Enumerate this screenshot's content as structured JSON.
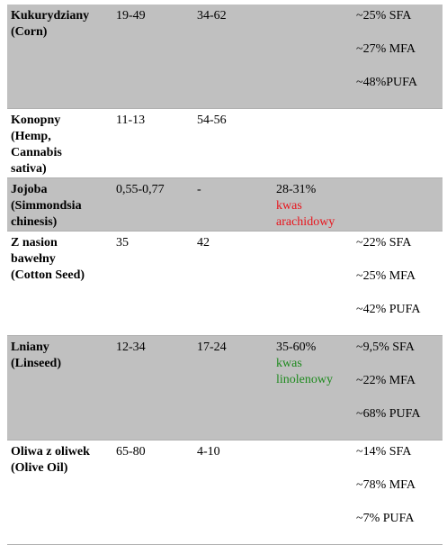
{
  "table": {
    "rows": [
      {
        "shaded": true,
        "cells": [
          {
            "lines": [
              "Kukurydziany",
              "(Corn)"
            ]
          },
          {
            "lines": [
              "19-49"
            ]
          },
          {
            "lines": [
              "34-62"
            ]
          },
          {
            "lines": []
          },
          {
            "lines": [
              "~25% SFA",
              "~27% MFA",
              "~48%PUFA"
            ]
          }
        ]
      },
      {
        "shaded": false,
        "cells": [
          {
            "lines": [
              "Konopny",
              "(Hemp,",
              "Cannabis",
              "sativa)"
            ]
          },
          {
            "lines": [
              "11-13"
            ]
          },
          {
            "lines": [
              "54-56"
            ]
          },
          {
            "lines": []
          },
          {
            "lines": []
          }
        ]
      },
      {
        "shaded": true,
        "cells": [
          {
            "lines": [
              "Jojoba",
              "(Simmondsia",
              "chinesis)"
            ]
          },
          {
            "lines": [
              "0,55-0,77"
            ]
          },
          {
            "lines": [
              "-"
            ]
          },
          {
            "lines": [
              "28-31%"
            ],
            "note": [
              "kwas",
              "arachidowy"
            ],
            "note_color": "#e8141c"
          },
          {
            "lines": []
          }
        ]
      },
      {
        "shaded": false,
        "cells": [
          {
            "lines": [
              "Z nasion",
              "bawełny",
              "(Cotton Seed)"
            ]
          },
          {
            "lines": [
              "35"
            ]
          },
          {
            "lines": [
              "42"
            ]
          },
          {
            "lines": []
          },
          {
            "lines": [
              "~22% SFA",
              "~25% MFA",
              "~42% PUFA"
            ]
          }
        ]
      },
      {
        "shaded": true,
        "cells": [
          {
            "lines": [
              "Lniany",
              "(Linseed)"
            ]
          },
          {
            "lines": [
              "12-34"
            ]
          },
          {
            "lines": [
              "17-24"
            ]
          },
          {
            "lines": [
              "35-60%"
            ],
            "note": [
              "kwas",
              "linolenowy"
            ],
            "note_color": "#1e8a1e"
          },
          {
            "lines": [
              "~9,5% SFA",
              "~22% MFA",
              "~68% PUFA"
            ]
          }
        ]
      },
      {
        "shaded": false,
        "cells": [
          {
            "lines": [
              "Oliwa z oliwek",
              "(Olive Oil)"
            ]
          },
          {
            "lines": [
              "65-80"
            ]
          },
          {
            "lines": [
              "4-10"
            ]
          },
          {
            "lines": []
          },
          {
            "lines": [
              "~14% SFA",
              "~78% MFA",
              "~7% PUFA"
            ]
          }
        ]
      }
    ]
  }
}
